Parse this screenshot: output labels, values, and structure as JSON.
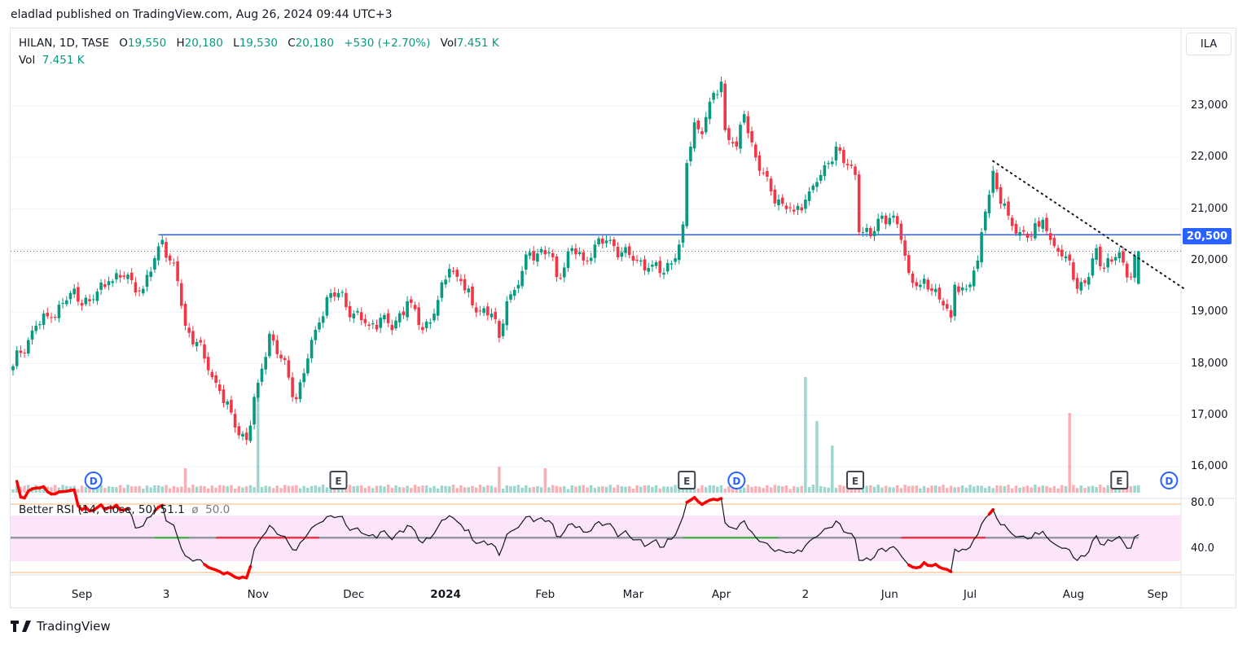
{
  "header": {
    "published": "eladlad published on TradingView.com, Aug 26, 2024 09:44 UTC+3"
  },
  "legend": {
    "symbol": "HILAN, 1D, TASE",
    "open_label": "O",
    "open": "19,550",
    "high_label": "H",
    "high": "20,180",
    "low_label": "L",
    "low": "19,530",
    "close_label": "C",
    "close": "20,180",
    "change": "+530 (+2.70%)",
    "vol_label": "Vol",
    "vol": "7.451 K"
  },
  "volume_legend": {
    "label": "Vol",
    "value": "7.451 K"
  },
  "rsi_legend": {
    "label": "Better RSI (14, close, 50)",
    "value": "51.1",
    "sym": "ø",
    "mid": "50.0"
  },
  "currency": "ILA",
  "price_tag": "20,500",
  "brand": "TradingView",
  "colors": {
    "up": "#089981",
    "down": "#f23645",
    "hline": "#2962ff",
    "band": "#fce4fb",
    "rsi_ob": "#f7b26c"
  },
  "chart_data": {
    "type": "candlestick",
    "title": "HILAN, 1D, TASE",
    "y_ticks": [
      "23,000",
      "22,000",
      "21,000",
      "20,000",
      "19,000",
      "18,000",
      "17,000",
      "16,000"
    ],
    "y_tick_values": [
      23000,
      22000,
      21000,
      20000,
      19000,
      18000,
      17000,
      16000
    ],
    "ylim": [
      15600,
      24000
    ],
    "x_ticks": [
      {
        "label": "Sep",
        "t": 18,
        "bold": false
      },
      {
        "label": "3",
        "t": 40,
        "bold": false
      },
      {
        "label": "Nov",
        "t": 64,
        "bold": false
      },
      {
        "label": "Dec",
        "t": 89,
        "bold": false
      },
      {
        "label": "2024",
        "t": 113,
        "bold": true
      },
      {
        "label": "Feb",
        "t": 139,
        "bold": false
      },
      {
        "label": "Mar",
        "t": 162,
        "bold": false
      },
      {
        "label": "Apr",
        "t": 185,
        "bold": false
      },
      {
        "label": "2",
        "t": 207,
        "bold": false
      },
      {
        "label": "Jun",
        "t": 229,
        "bold": false
      },
      {
        "label": "Jul",
        "t": 250,
        "bold": false
      },
      {
        "label": "Aug",
        "t": 277,
        "bold": false
      },
      {
        "label": "Sep",
        "t": 299,
        "bold": false
      }
    ],
    "close_anchors": [
      [
        0,
        17950
      ],
      [
        6,
        18735
      ],
      [
        10,
        18890
      ],
      [
        15,
        19370
      ],
      [
        20,
        19210
      ],
      [
        25,
        19600
      ],
      [
        29,
        19680
      ],
      [
        34,
        19450
      ],
      [
        39,
        20400
      ],
      [
        41,
        20000
      ],
      [
        43,
        19600
      ],
      [
        45,
        18735
      ],
      [
        48,
        18420
      ],
      [
        51,
        17870
      ],
      [
        54,
        17470
      ],
      [
        58,
        16760
      ],
      [
        61,
        16520
      ],
      [
        64,
        17630
      ],
      [
        67,
        18580
      ],
      [
        70,
        18100
      ],
      [
        74,
        17310
      ],
      [
        77,
        18100
      ],
      [
        80,
        18800
      ],
      [
        82,
        19290
      ],
      [
        85,
        19370
      ],
      [
        89,
        18970
      ],
      [
        93,
        18735
      ],
      [
        96,
        18890
      ],
      [
        99,
        18650
      ],
      [
        103,
        19210
      ],
      [
        107,
        18650
      ],
      [
        110,
        18970
      ],
      [
        114,
        19840
      ],
      [
        117,
        19600
      ],
      [
        120,
        19130
      ],
      [
        125,
        18970
      ],
      [
        127,
        18500
      ],
      [
        129,
        19210
      ],
      [
        132,
        19530
      ],
      [
        135,
        20160
      ],
      [
        140,
        20160
      ],
      [
        142,
        19680
      ],
      [
        146,
        20240
      ],
      [
        149,
        20000
      ],
      [
        152,
        20310
      ],
      [
        156,
        20400
      ],
      [
        159,
        20160
      ],
      [
        163,
        20000
      ],
      [
        167,
        19920
      ],
      [
        170,
        19760
      ],
      [
        174,
        20310
      ],
      [
        175,
        20700
      ],
      [
        176,
        21890
      ],
      [
        178,
        22680
      ],
      [
        180,
        22450
      ],
      [
        182,
        23080
      ],
      [
        185,
        23470
      ],
      [
        186,
        22530
      ],
      [
        189,
        22210
      ],
      [
        191,
        22840
      ],
      [
        193,
        22290
      ],
      [
        195,
        21740
      ],
      [
        198,
        21340
      ],
      [
        201,
        21100
      ],
      [
        204,
        20950
      ],
      [
        208,
        21340
      ],
      [
        211,
        21660
      ],
      [
        213,
        21890
      ],
      [
        215,
        22210
      ],
      [
        217,
        21890
      ],
      [
        220,
        21660
      ],
      [
        221,
        20550
      ],
      [
        224,
        20470
      ],
      [
        227,
        20870
      ],
      [
        230,
        20870
      ],
      [
        232,
        20400
      ],
      [
        234,
        19760
      ],
      [
        237,
        19530
      ],
      [
        241,
        19450
      ],
      [
        243,
        19130
      ],
      [
        245,
        18890
      ],
      [
        246,
        19530
      ],
      [
        249,
        19450
      ],
      [
        252,
        20000
      ],
      [
        254,
        20950
      ],
      [
        256,
        21740
      ],
      [
        258,
        21100
      ],
      [
        260,
        20870
      ],
      [
        263,
        20550
      ],
      [
        266,
        20470
      ],
      [
        269,
        20790
      ],
      [
        271,
        20400
      ],
      [
        274,
        20080
      ],
      [
        276,
        20000
      ],
      [
        278,
        19450
      ],
      [
        281,
        19680
      ],
      [
        283,
        20240
      ],
      [
        285,
        19840
      ],
      [
        289,
        20160
      ],
      [
        292,
        19680
      ],
      [
        294,
        20180
      ]
    ],
    "last_candle": {
      "open": 19550,
      "high": 20180,
      "low": 19530,
      "close": 20180
    },
    "volume_spikes_k": [
      [
        45,
        30
      ],
      [
        64,
        118
      ],
      [
        127,
        32
      ],
      [
        139,
        30
      ],
      [
        207,
        142
      ],
      [
        210,
        88
      ],
      [
        214,
        58
      ],
      [
        276,
        98
      ]
    ],
    "horizontal_line": {
      "price": 20500,
      "from_t": 38
    },
    "trend_line": {
      "from": [
        256,
        21930
      ],
      "to": [
        306,
        19450
      ]
    },
    "last_price": 20180,
    "rsi": {
      "period": 14,
      "ylim": [
        10,
        90
      ],
      "ticks": [
        "80.0",
        "40.0"
      ],
      "tick_values": [
        80,
        40
      ],
      "band": [
        30,
        70
      ],
      "levels": [
        80,
        20
      ],
      "mid_segments": [
        {
          "from": 37,
          "to": 46,
          "color": "#4caf50"
        },
        {
          "from": 53,
          "to": 80,
          "color": "#f23645"
        },
        {
          "from": 175,
          "to": 200,
          "color": "#4caf50"
        },
        {
          "from": 232,
          "to": 254,
          "color": "#f23645"
        }
      ]
    },
    "events": [
      {
        "type": "D",
        "t": 21
      },
      {
        "type": "E",
        "t": 85
      },
      {
        "type": "E",
        "t": 176
      },
      {
        "type": "D",
        "t": 189
      },
      {
        "type": "E",
        "t": 220
      },
      {
        "type": "E",
        "t": 289
      },
      {
        "type": "D",
        "t": 302
      }
    ]
  }
}
